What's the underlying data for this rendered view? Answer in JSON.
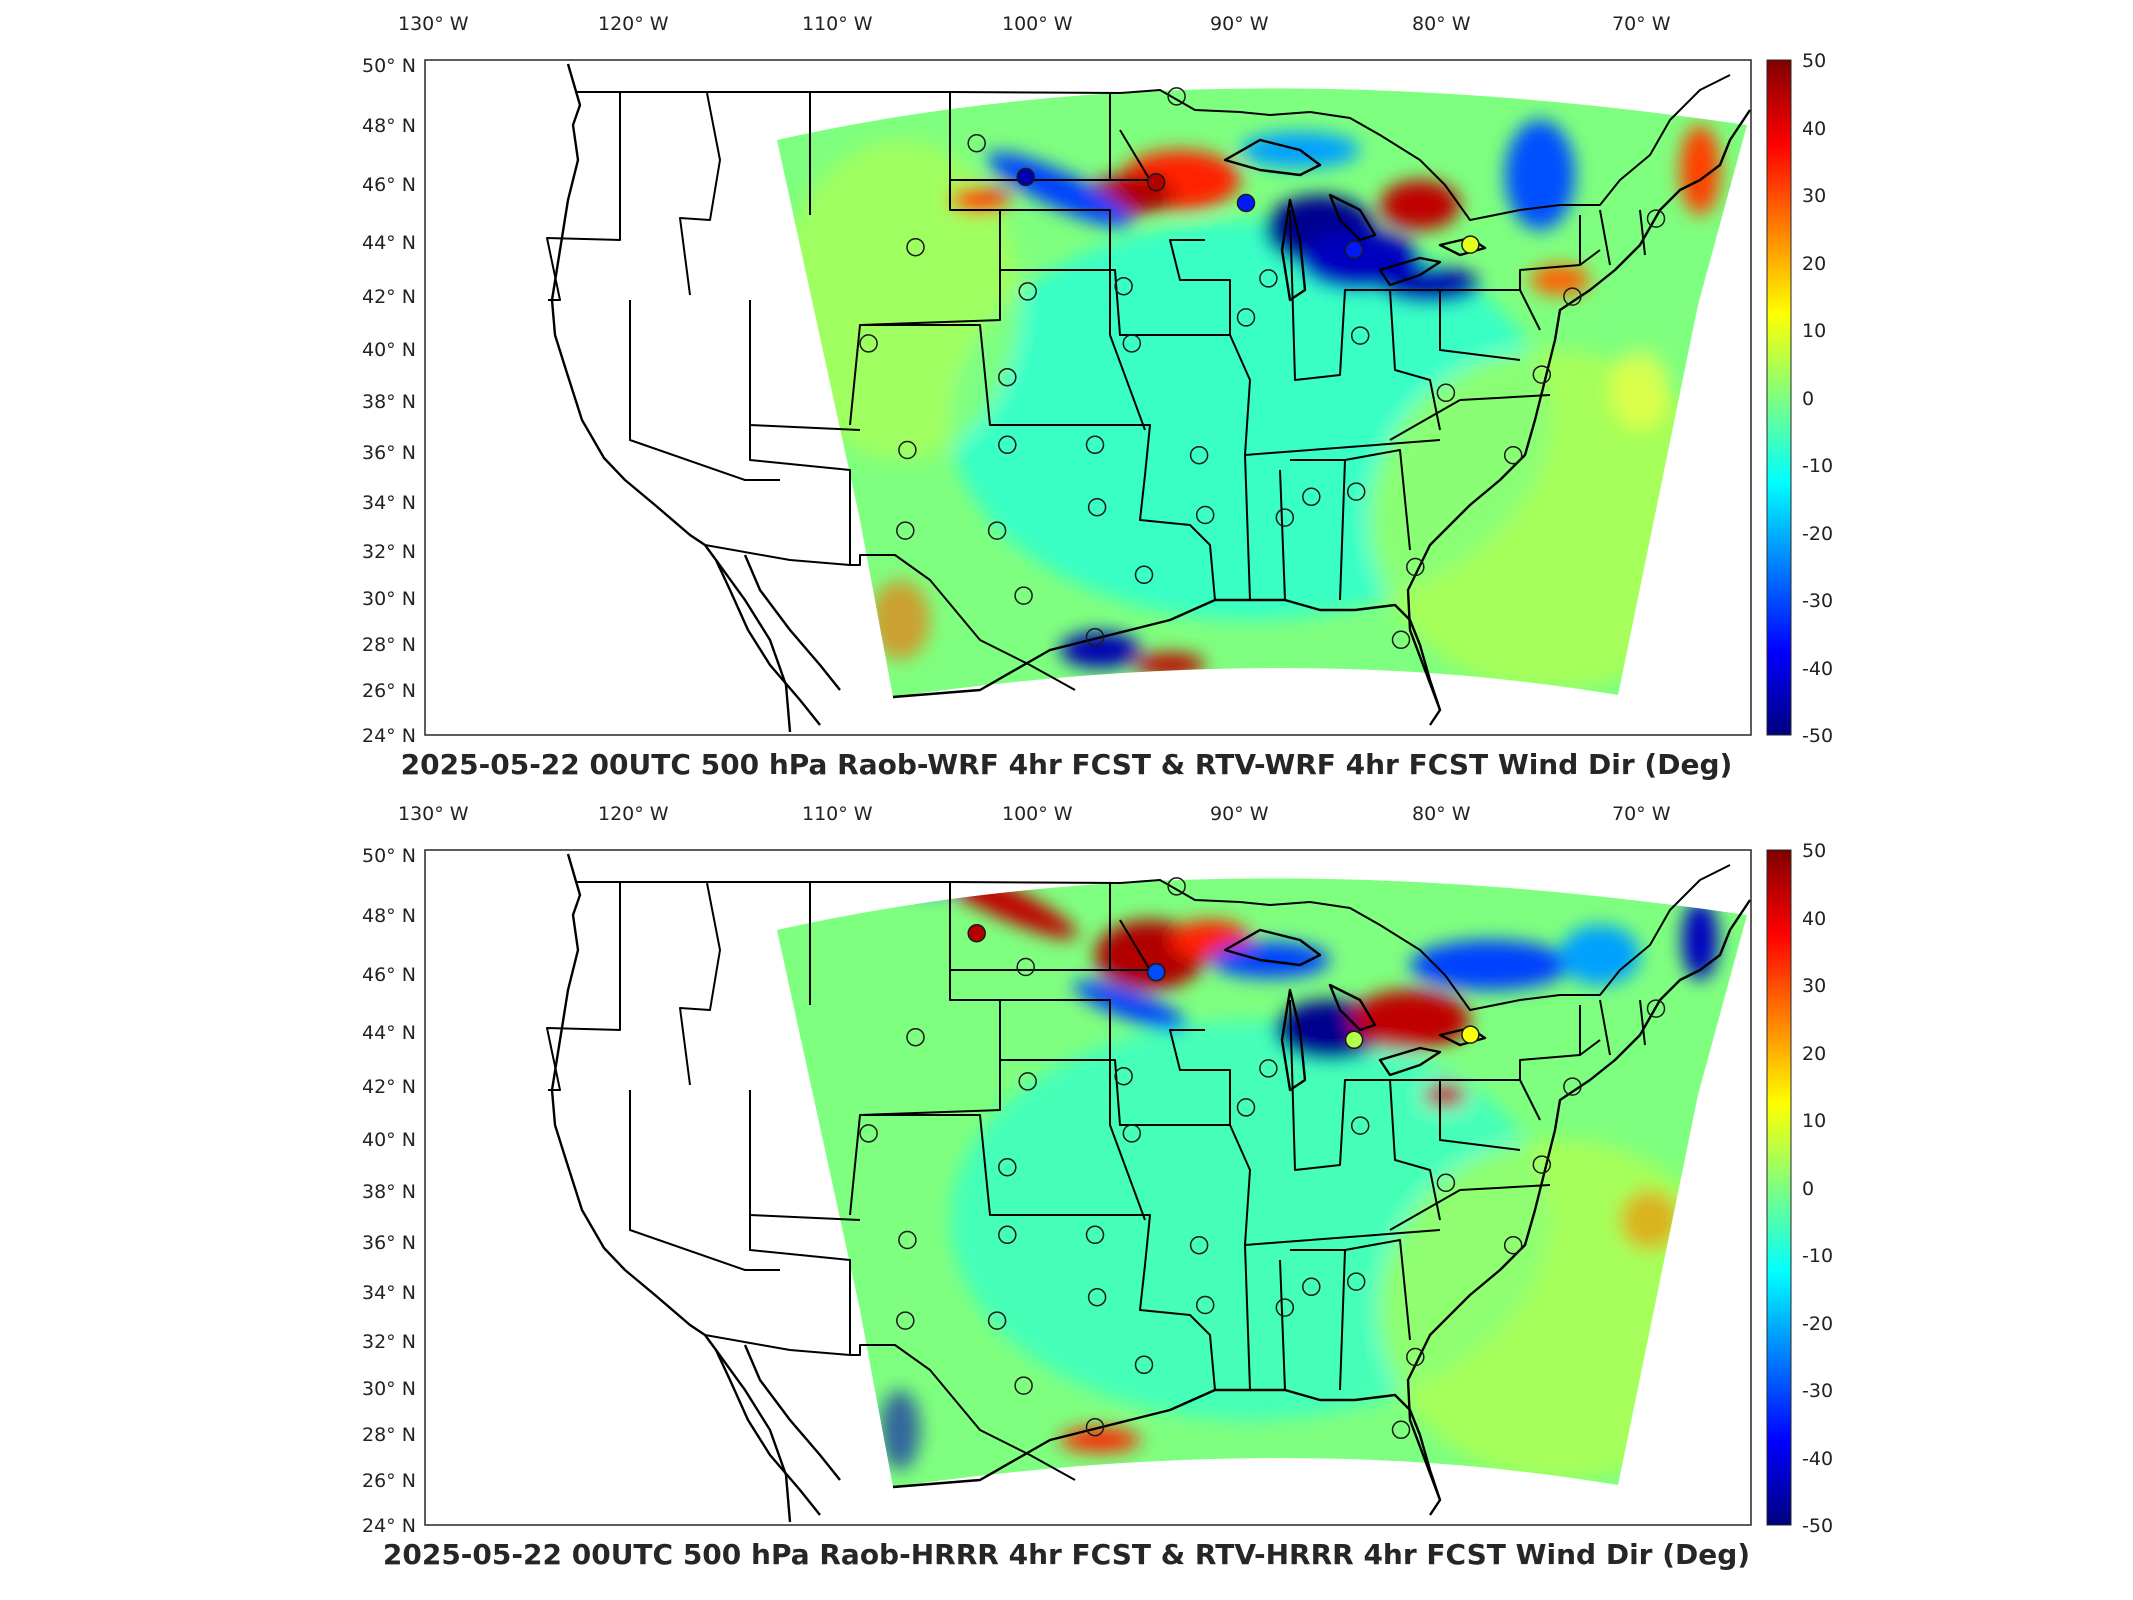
{
  "panels": [
    {
      "title": "2025-05-22 00UTC 500 hPa Raob-WRF 4hr FCST & RTV-WRF 4hr FCST Wind Dir (Deg)",
      "lon_labels": [
        "130° W",
        "120° W",
        "110° W",
        "100° W",
        "90° W",
        "80° W",
        "70° W"
      ],
      "lat_labels": [
        "50° N",
        "48° N",
        "46° N",
        "44° N",
        "42° N",
        "40° N",
        "38° N",
        "36° N",
        "34° N",
        "32° N",
        "30° N",
        "28° N",
        "26° N",
        "24° N"
      ],
      "colorbar_labels": [
        "50",
        "40",
        "30",
        "20",
        "10",
        "0",
        "-10",
        "-20",
        "-30",
        "-40",
        "-50"
      ],
      "raob_stations": [
        {
          "lon": -93.4,
          "lat": 48.6,
          "value": 0
        },
        {
          "lon": -103.2,
          "lat": 46.8,
          "value": 0
        },
        {
          "lon": -100.8,
          "lat": 45.5,
          "value": -45
        },
        {
          "lon": -94.4,
          "lat": 45.3,
          "value": 45
        },
        {
          "lon": -90.0,
          "lat": 44.5,
          "value": -35
        },
        {
          "lon": -106.2,
          "lat": 42.8,
          "value": 0
        },
        {
          "lon": -100.7,
          "lat": 41.1,
          "value": 0
        },
        {
          "lon": -96.0,
          "lat": 41.3,
          "value": 0
        },
        {
          "lon": -88.9,
          "lat": 41.6,
          "value": 0
        },
        {
          "lon": -84.7,
          "lat": 42.7,
          "value": -35
        },
        {
          "lon": -79.0,
          "lat": 42.9,
          "value": 10
        },
        {
          "lon": -69.9,
          "lat": 43.9,
          "value": 0
        },
        {
          "lon": -108.5,
          "lat": 39.1,
          "value": 0
        },
        {
          "lon": -101.7,
          "lat": 37.8,
          "value": 0
        },
        {
          "lon": -95.6,
          "lat": 39.1,
          "value": 0
        },
        {
          "lon": -90.0,
          "lat": 40.1,
          "value": 0
        },
        {
          "lon": -84.4,
          "lat": 39.4,
          "value": 0
        },
        {
          "lon": -80.2,
          "lat": 37.2,
          "value": 0
        },
        {
          "lon": -75.5,
          "lat": 37.9,
          "value": 0
        },
        {
          "lon": -74.0,
          "lat": 40.9,
          "value": 0
        },
        {
          "lon": -106.6,
          "lat": 35.0,
          "value": 0
        },
        {
          "lon": -101.7,
          "lat": 35.2,
          "value": 0
        },
        {
          "lon": -97.4,
          "lat": 35.2,
          "value": 0
        },
        {
          "lon": -92.3,
          "lat": 34.8,
          "value": 0
        },
        {
          "lon": -86.8,
          "lat": 33.2,
          "value": 0
        },
        {
          "lon": -84.6,
          "lat": 33.4,
          "value": 0
        },
        {
          "lon": -76.9,
          "lat": 34.8,
          "value": 0
        },
        {
          "lon": -106.7,
          "lat": 31.9,
          "value": 0
        },
        {
          "lon": -102.2,
          "lat": 31.9,
          "value": 0
        },
        {
          "lon": -97.3,
          "lat": 32.8,
          "value": 0
        },
        {
          "lon": -92.0,
          "lat": 32.5,
          "value": 0
        },
        {
          "lon": -88.1,
          "lat": 32.4,
          "value": 0
        },
        {
          "lon": -100.9,
          "lat": 29.4,
          "value": 0
        },
        {
          "lon": -95.0,
          "lat": 30.2,
          "value": 0
        },
        {
          "lon": -81.7,
          "lat": 30.5,
          "value": 0
        },
        {
          "lon": -97.4,
          "lat": 27.8,
          "value": 0
        },
        {
          "lon": -82.4,
          "lat": 27.7,
          "value": 0
        }
      ]
    },
    {
      "title": "2025-05-22 00UTC 500 hPa Raob-HRRR 4hr FCST & RTV-HRRR 4hr FCST Wind Dir (Deg)",
      "lon_labels": [
        "130° W",
        "120° W",
        "110° W",
        "100° W",
        "90° W",
        "80° W",
        "70° W"
      ],
      "lat_labels": [
        "50° N",
        "48° N",
        "46° N",
        "44° N",
        "42° N",
        "40° N",
        "38° N",
        "36° N",
        "34° N",
        "32° N",
        "30° N",
        "28° N",
        "26° N",
        "24° N"
      ],
      "colorbar_labels": [
        "50",
        "40",
        "30",
        "20",
        "10",
        "0",
        "-10",
        "-20",
        "-30",
        "-40",
        "-50"
      ],
      "raob_stations": [
        {
          "lon": -93.4,
          "lat": 48.6,
          "value": 0
        },
        {
          "lon": -103.2,
          "lat": 46.8,
          "value": 45
        },
        {
          "lon": -100.8,
          "lat": 45.5,
          "value": 0
        },
        {
          "lon": -94.4,
          "lat": 45.3,
          "value": -30
        },
        {
          "lon": -106.2,
          "lat": 42.8,
          "value": 0
        },
        {
          "lon": -100.7,
          "lat": 41.1,
          "value": 0
        },
        {
          "lon": -96.0,
          "lat": 41.3,
          "value": 0
        },
        {
          "lon": -88.9,
          "lat": 41.6,
          "value": 0
        },
        {
          "lon": -84.7,
          "lat": 42.7,
          "value": 5
        },
        {
          "lon": -79.0,
          "lat": 42.9,
          "value": 12
        },
        {
          "lon": -69.9,
          "lat": 43.9,
          "value": 0
        },
        {
          "lon": -108.5,
          "lat": 39.1,
          "value": 0
        },
        {
          "lon": -101.7,
          "lat": 37.8,
          "value": 0
        },
        {
          "lon": -95.6,
          "lat": 39.1,
          "value": 0
        },
        {
          "lon": -90.0,
          "lat": 40.1,
          "value": 0
        },
        {
          "lon": -84.4,
          "lat": 39.4,
          "value": 0
        },
        {
          "lon": -80.2,
          "lat": 37.2,
          "value": 0
        },
        {
          "lon": -75.5,
          "lat": 37.9,
          "value": 0
        },
        {
          "lon": -74.0,
          "lat": 40.9,
          "value": 0
        },
        {
          "lon": -106.6,
          "lat": 35.0,
          "value": 0
        },
        {
          "lon": -101.7,
          "lat": 35.2,
          "value": 0
        },
        {
          "lon": -97.4,
          "lat": 35.2,
          "value": 0
        },
        {
          "lon": -92.3,
          "lat": 34.8,
          "value": 0
        },
        {
          "lon": -86.8,
          "lat": 33.2,
          "value": 0
        },
        {
          "lon": -84.6,
          "lat": 33.4,
          "value": 0
        },
        {
          "lon": -76.9,
          "lat": 34.8,
          "value": 0
        },
        {
          "lon": -106.7,
          "lat": 31.9,
          "value": 0
        },
        {
          "lon": -102.2,
          "lat": 31.9,
          "value": 0
        },
        {
          "lon": -97.3,
          "lat": 32.8,
          "value": 0
        },
        {
          "lon": -92.0,
          "lat": 32.5,
          "value": 0
        },
        {
          "lon": -88.1,
          "lat": 32.4,
          "value": 0
        },
        {
          "lon": -100.9,
          "lat": 29.4,
          "value": 0
        },
        {
          "lon": -95.0,
          "lat": 30.2,
          "value": 0
        },
        {
          "lon": -81.7,
          "lat": 30.5,
          "value": 0
        },
        {
          "lon": -97.4,
          "lat": 27.8,
          "value": 0
        },
        {
          "lon": -82.4,
          "lat": 27.7,
          "value": 0
        }
      ]
    }
  ],
  "colormap": {
    "name": "jet",
    "range": [
      -50,
      50
    ],
    "stops": [
      "#00007f",
      "#0000ff",
      "#007fff",
      "#00ffff",
      "#7fff7f",
      "#ffff00",
      "#ff7f00",
      "#ff0000",
      "#7f0000"
    ]
  }
}
